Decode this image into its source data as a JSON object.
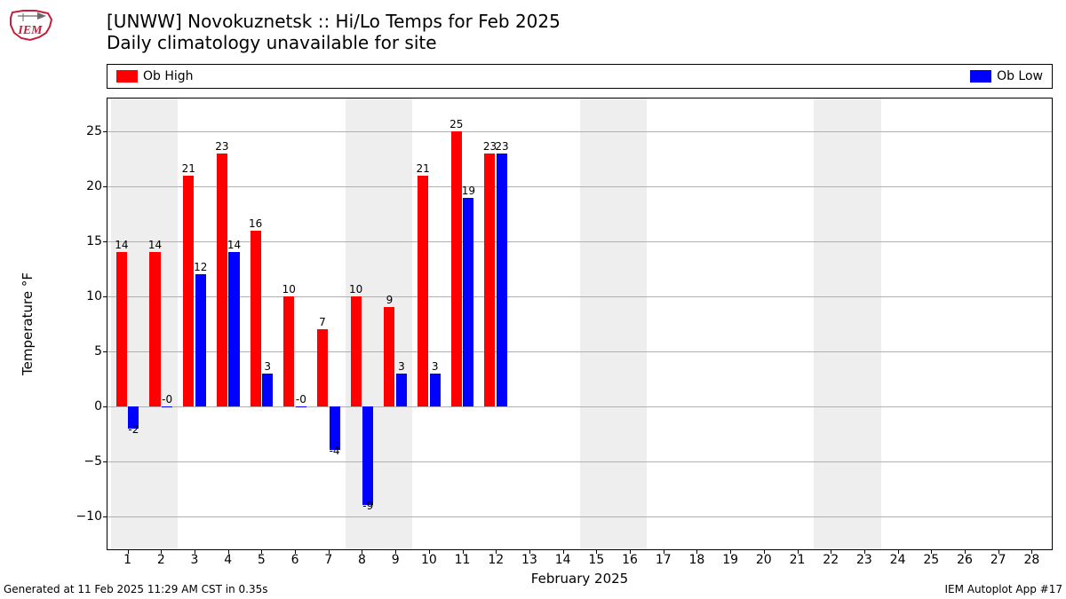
{
  "logo": {
    "label_text": "IEM",
    "outline_color": "#c41e3a",
    "text_color": "#c41e3a",
    "accent_color": "#6a6a6a"
  },
  "title": {
    "line1": "[UNWW] Novokuznetsk :: Hi/Lo Temps for Feb 2025",
    "line2": "Daily climatology unavailable for site",
    "fontsize": 20
  },
  "legend": {
    "high": {
      "label": "Ob High",
      "color": "#ff0000"
    },
    "low": {
      "label": "Ob Low",
      "color": "#0000ff"
    }
  },
  "chart": {
    "type": "bar",
    "background_color": "#ffffff",
    "weekend_color": "#eeeeee",
    "grid_color": "#b0b0b0",
    "border_color": "#000000",
    "ylabel": "Temperature °F",
    "xlabel": "February 2025",
    "label_fontsize": 15,
    "tick_fontsize": 14,
    "value_fontsize": 12,
    "ylim": [
      -13,
      28
    ],
    "yticks": [
      -10,
      -5,
      0,
      5,
      10,
      15,
      20,
      25
    ],
    "xlim": [
      0.4,
      28.6
    ],
    "days": [
      1,
      2,
      3,
      4,
      5,
      6,
      7,
      8,
      9,
      10,
      11,
      12,
      13,
      14,
      15,
      16,
      17,
      18,
      19,
      20,
      21,
      22,
      23,
      24,
      25,
      26,
      27,
      28
    ],
    "weekend_days": [
      1,
      2,
      8,
      9,
      15,
      16,
      22,
      23
    ],
    "bar_width": 0.32,
    "high_offset": -0.18,
    "low_offset": 0.18,
    "high_color": "#ff0000",
    "low_color": "#0000ff",
    "data": [
      {
        "day": 1,
        "high": 14,
        "low": -2
      },
      {
        "day": 2,
        "high": 14,
        "low": 0,
        "low_label": "-0"
      },
      {
        "day": 3,
        "high": 21,
        "low": 12
      },
      {
        "day": 4,
        "high": 23,
        "low": 14
      },
      {
        "day": 5,
        "high": 16,
        "low": 3
      },
      {
        "day": 6,
        "high": 10,
        "low": 0,
        "low_label": "-0"
      },
      {
        "day": 7,
        "high": 7,
        "low": -4
      },
      {
        "day": 8,
        "high": 10,
        "low": -9
      },
      {
        "day": 9,
        "high": 9,
        "low": 3
      },
      {
        "day": 10,
        "high": 21,
        "low": 3
      },
      {
        "day": 11,
        "high": 25,
        "low": 19
      },
      {
        "day": 12,
        "high": 23,
        "low": 23
      }
    ]
  },
  "footer": {
    "left": "Generated at 11 Feb 2025 11:29 AM CST in 0.35s",
    "right": "IEM Autoplot App #17",
    "fontsize": 12
  }
}
